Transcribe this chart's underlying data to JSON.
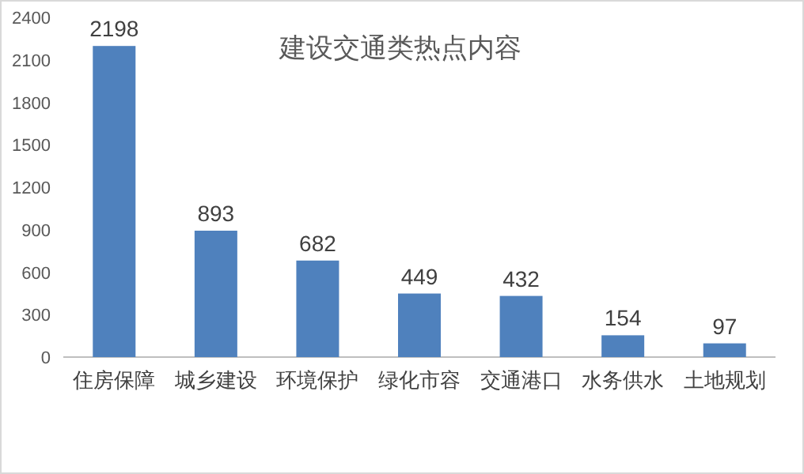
{
  "chart_data": {
    "type": "bar",
    "title": "建设交通类热点内容",
    "categories": [
      "住房保障",
      "城乡建设",
      "环境保护",
      "绿化市容",
      "交通港口",
      "水务供水",
      "土地规划"
    ],
    "values": [
      2198,
      893,
      682,
      449,
      432,
      154,
      97
    ],
    "color": "#4f81bd",
    "ylim": [
      0,
      2400
    ],
    "yticks": [
      0,
      300,
      600,
      900,
      1200,
      1500,
      1800,
      2100,
      2400
    ],
    "data_labels": true,
    "grid": false
  }
}
